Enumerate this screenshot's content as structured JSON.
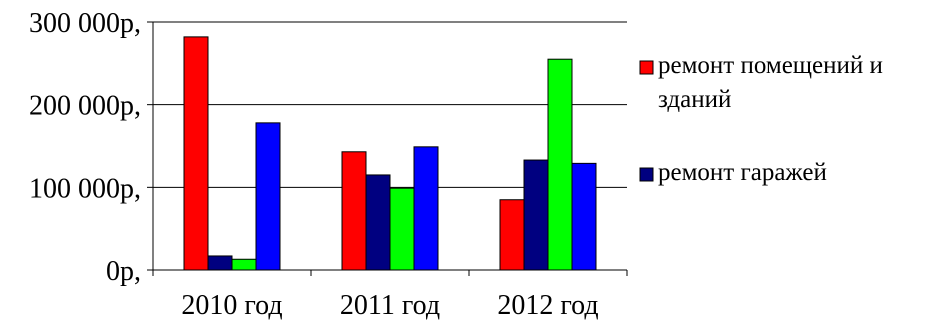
{
  "chart_data": {
    "type": "bar",
    "title": "",
    "xlabel": "",
    "ylabel": "",
    "categories": [
      "2010 год",
      "2011 год",
      "2012 год"
    ],
    "series": [
      {
        "name": "ремонт помещений и зданий",
        "color": "#ff0000",
        "values": [
          282000,
          143000,
          85000
        ]
      },
      {
        "name": "ремонт гаражей",
        "color": "#000080",
        "values": [
          17000,
          115000,
          133000
        ]
      },
      {
        "name": "",
        "color": "#00ff00",
        "values": [
          13000,
          99000,
          255000
        ]
      },
      {
        "name": "",
        "color": "#0000ff",
        "values": [
          178000,
          149000,
          129000
        ]
      }
    ],
    "ylim": [
      0,
      300000
    ],
    "y_ticks": [
      {
        "value": 0,
        "label": "0р,"
      },
      {
        "value": 100000,
        "label": "100 000р,"
      },
      {
        "value": 200000,
        "label": "200 000р,"
      },
      {
        "value": 300000,
        "label": "300 000р,"
      }
    ],
    "grid": true,
    "legend_position": "right"
  }
}
